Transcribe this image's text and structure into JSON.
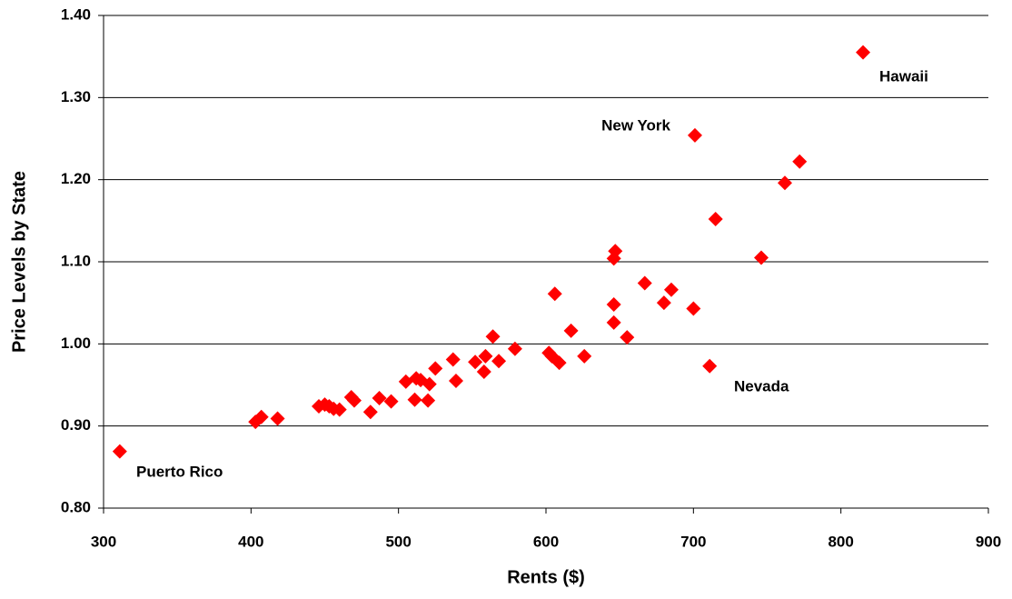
{
  "chart_data": {
    "type": "scatter",
    "xlabel": "Rents ($)",
    "ylabel": "Price Levels by State",
    "series": [
      {
        "color": "#ff0000",
        "x": [
          311,
          403,
          407,
          418,
          446,
          450,
          453,
          456,
          460,
          468,
          470,
          481,
          487,
          495,
          505,
          511,
          512,
          515,
          520,
          521,
          525,
          537,
          539,
          552,
          558,
          559,
          564,
          568,
          579,
          602,
          604,
          606,
          609,
          617,
          626,
          646,
          646,
          646,
          647,
          655,
          667,
          680,
          685,
          700,
          701,
          711,
          715,
          746,
          762,
          772,
          815
        ],
        "values": [
          0.869,
          0.905,
          0.911,
          0.909,
          0.924,
          0.926,
          0.924,
          0.921,
          0.92,
          0.935,
          0.931,
          0.917,
          0.934,
          0.93,
          0.954,
          0.932,
          0.958,
          0.956,
          0.931,
          0.951,
          0.97,
          0.981,
          0.955,
          0.978,
          0.966,
          0.985,
          1.009,
          0.979,
          0.994,
          0.989,
          0.985,
          1.061,
          0.977,
          1.016,
          0.985,
          1.026,
          1.048,
          1.104,
          1.113,
          1.008,
          1.074,
          1.05,
          1.066,
          1.043,
          1.254,
          0.973,
          1.152,
          1.105,
          1.196,
          1.222,
          1.355
        ]
      }
    ],
    "annotations": [
      "Puerto Rico",
      "New York",
      "Hawaii",
      "Nevada"
    ],
    "xlim": [
      300,
      900
    ],
    "xticks": [
      300,
      400,
      500,
      600,
      700,
      800,
      900
    ],
    "ylim": [
      0.8,
      1.4
    ],
    "yticks": [
      {
        "value": 0.8,
        "label": "0.80"
      },
      {
        "value": 0.9,
        "label": "0.90"
      },
      {
        "value": 1.0,
        "label": "1.00"
      },
      {
        "value": 1.1,
        "label": "1.10"
      },
      {
        "value": 1.2,
        "label": "1.20"
      },
      {
        "value": 1.3,
        "label": "1.30"
      },
      {
        "value": 1.4,
        "label": "1.40"
      }
    ],
    "grid": true
  }
}
